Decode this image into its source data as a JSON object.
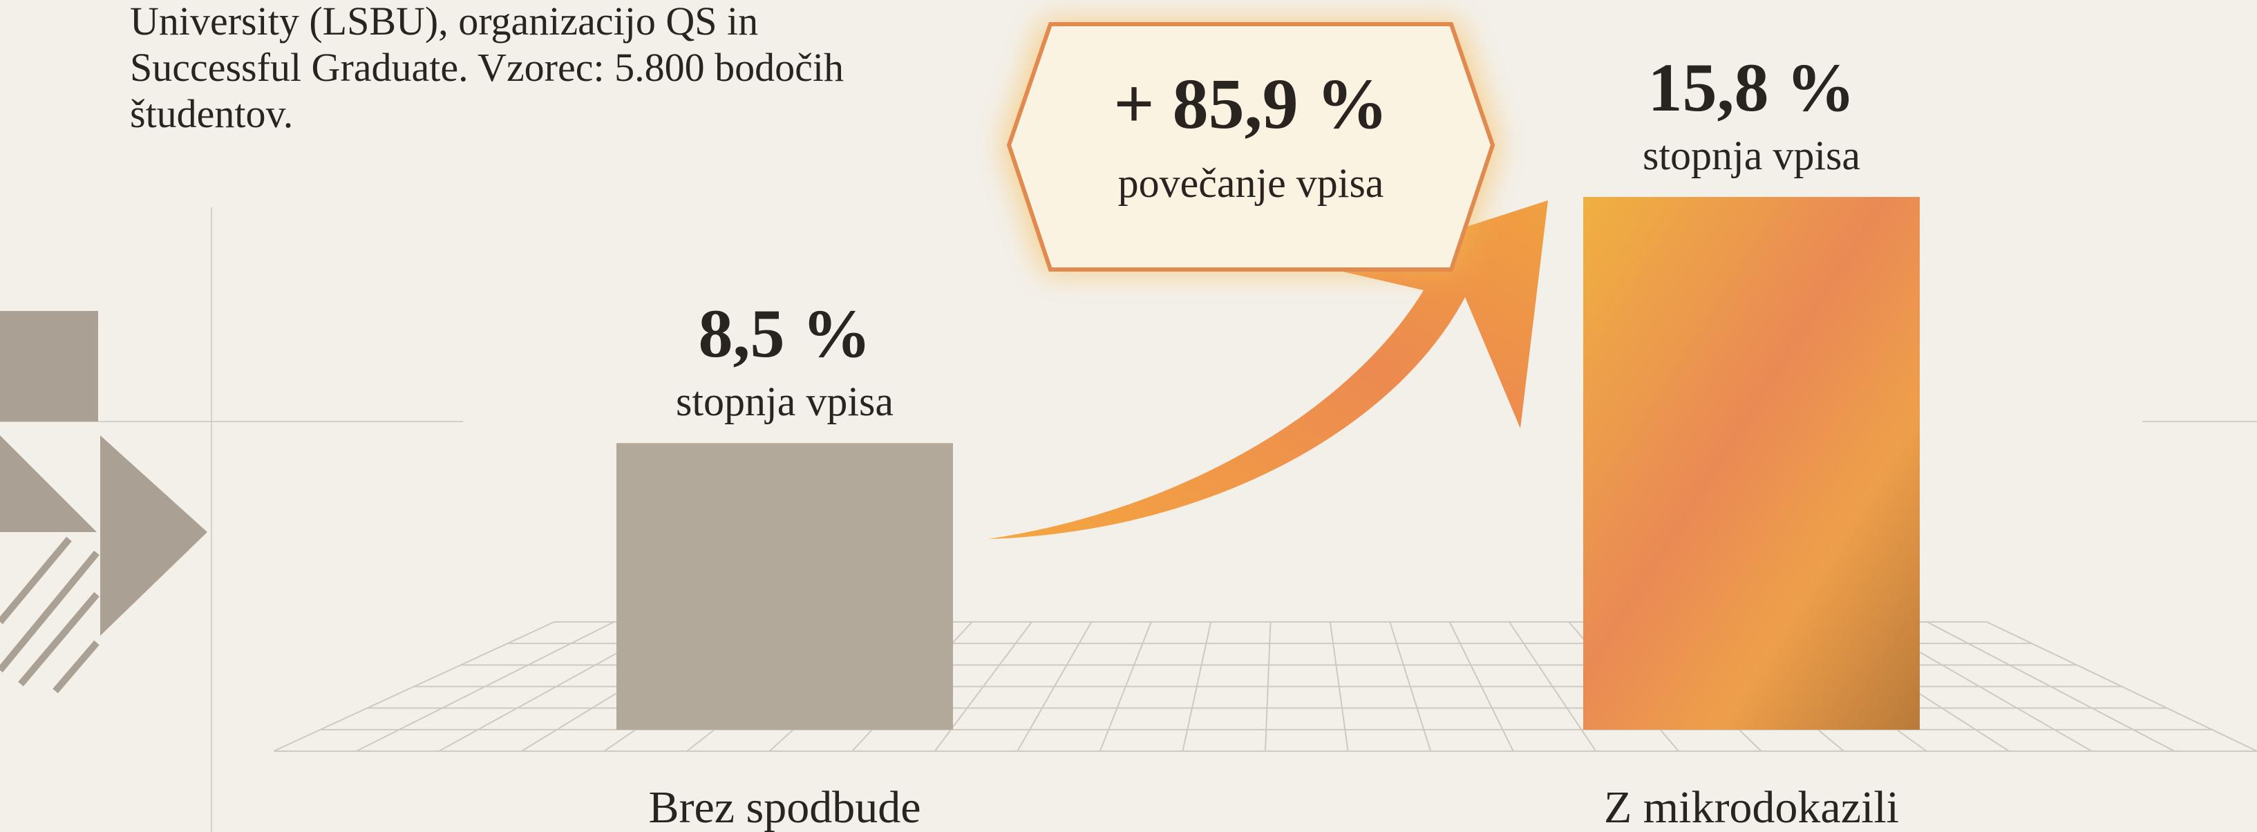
{
  "description_lines": [
    "University (LSBU), organizacijo QS in",
    "Successful Graduate. Vzorec: 5.800 bodočih",
    "študentov."
  ],
  "chart_data": {
    "type": "bar",
    "categories": [
      "Brez spodbude",
      "Z mikrodokazili"
    ],
    "values": [
      8.5,
      15.8
    ],
    "value_labels": [
      "8,5 %",
      "15,8 %"
    ],
    "value_sublabels": [
      "stopnja vpisa",
      "stopnja vpisa"
    ],
    "colors": [
      "#b3a99b",
      "#e89a45"
    ],
    "annotation": {
      "title": "+ 85,9 %",
      "subtitle": "povečanje vpisa"
    }
  }
}
